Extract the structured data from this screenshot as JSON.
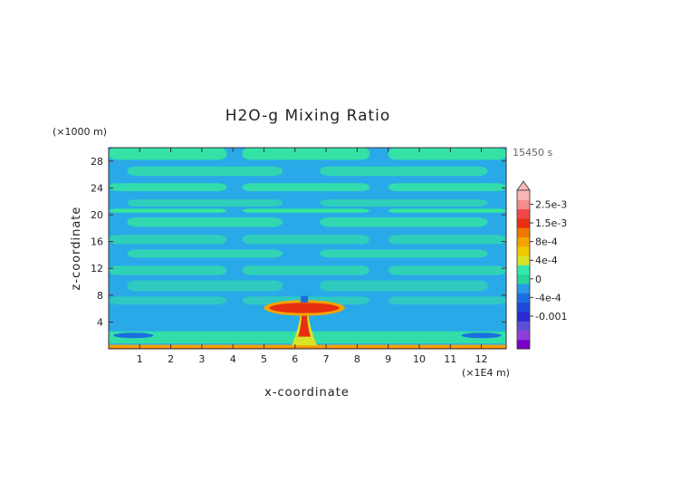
{
  "chart_data": {
    "type": "heatmap",
    "title": "H2O-g Mixing Ratio",
    "xlabel": "x-coordinate",
    "ylabel": "z-coordinate",
    "x_unit": "(×1E4 m)",
    "y_unit": "(×1000 m)",
    "time_label": "15450 s",
    "xlim": [
      0,
      12.8
    ],
    "ylim": [
      0,
      30
    ],
    "x_ticks": [
      1,
      2,
      3,
      4,
      5,
      6,
      7,
      8,
      9,
      10,
      11,
      12
    ],
    "y_ticks": [
      4,
      8,
      12,
      16,
      20,
      24,
      28
    ],
    "colorbar": {
      "levels": [
        {
          "label": "",
          "color": "#7a00c8"
        },
        {
          "label": "",
          "color": "#8f3fd6"
        },
        {
          "label": "",
          "color": "#5b4fd8"
        },
        {
          "label": "-0.001",
          "color": "#2a2ad0"
        },
        {
          "label": "",
          "color": "#1f4ad8"
        },
        {
          "label": "-4e-4",
          "color": "#1b6ee0"
        },
        {
          "label": "",
          "color": "#2a9ae8"
        },
        {
          "label": "0",
          "color": "#2bd59a"
        },
        {
          "label": "",
          "color": "#34e8b0"
        },
        {
          "label": "4e-4",
          "color": "#d8e428"
        },
        {
          "label": "",
          "color": "#f0c800"
        },
        {
          "label": "8e-4",
          "color": "#f5a300"
        },
        {
          "label": "",
          "color": "#f07800"
        },
        {
          "label": "1.5e-3",
          "color": "#e83010"
        },
        {
          "label": "",
          "color": "#f04848"
        },
        {
          "label": "2.5e-3",
          "color": "#f58c8c"
        },
        {
          "label": "",
          "color": "#f8b8b8"
        }
      ],
      "tick_labels": [
        "2.5e-3",
        "1.5e-3",
        "8e-4",
        "4e-4",
        "0",
        "-4e-4",
        "-0.001"
      ]
    },
    "field": {
      "background_color": "#2aa9e8",
      "positive_anomaly_color": "#34e89c",
      "plume_center_x": 6.3,
      "plume_top_z": 6.2,
      "anvil_x_range": [
        5.0,
        7.6
      ],
      "anvil_z_range": [
        5.2,
        7.0
      ],
      "surface_layer_z": 0.6
    }
  }
}
